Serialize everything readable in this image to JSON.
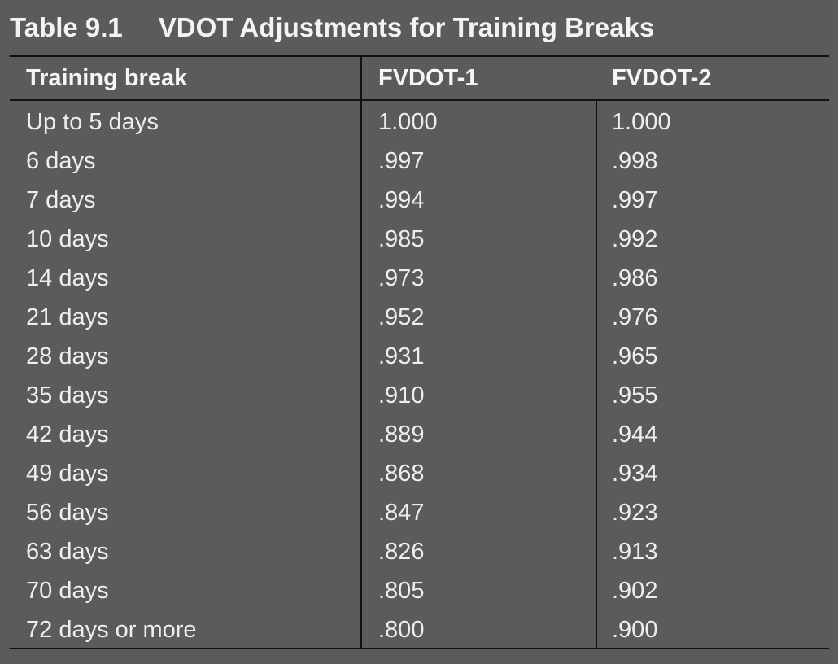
{
  "title": {
    "label": "Table 9.1",
    "text": "VDOT Adjustments for Training Breaks"
  },
  "table": {
    "headers": [
      "Training break",
      "FVDOT-1",
      "FVDOT-2"
    ],
    "rows": [
      [
        "Up to 5 days",
        "1.000",
        "1.000"
      ],
      [
        "6 days",
        ".997",
        ".998"
      ],
      [
        "7 days",
        ".994",
        ".997"
      ],
      [
        "10 days",
        ".985",
        ".992"
      ],
      [
        "14 days",
        ".973",
        ".986"
      ],
      [
        "21 days",
        ".952",
        ".976"
      ],
      [
        "28 days",
        ".931",
        ".965"
      ],
      [
        "35 days",
        ".910",
        ".955"
      ],
      [
        "42 days",
        ".889",
        ".944"
      ],
      [
        "49 days",
        ".868",
        ".934"
      ],
      [
        "56 days",
        ".847",
        ".923"
      ],
      [
        "63 days",
        ".826",
        ".913"
      ],
      [
        "70 days",
        ".805",
        ".902"
      ],
      [
        "72 days or more",
        ".800",
        ".900"
      ]
    ]
  }
}
